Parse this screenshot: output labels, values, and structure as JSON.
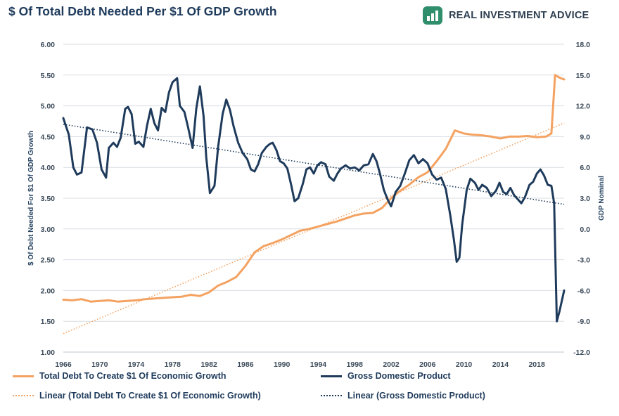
{
  "header": {
    "title": "$ Of Total Debt Needed Per $1 Of GDP Growth"
  },
  "brand": {
    "name": "REAL INVESTMENT ADVICE",
    "logo_icon": "chart-bars-icon",
    "logo_color": "#2f8f6c"
  },
  "colors": {
    "debt": "#f4a261",
    "gdp": "#1f3b5c",
    "grid": "#d9dde2"
  },
  "chart_data": {
    "type": "line",
    "left_axis": {
      "label": "$ Of Debt Needed For $1 Of GDP Growth",
      "min": 1.0,
      "max": 6.0,
      "ticks": [
        "1.00",
        "1.50",
        "2.00",
        "2.50",
        "3.00",
        "3.50",
        "4.00",
        "4.50",
        "5.00",
        "5.50",
        "6.00"
      ]
    },
    "right_axis": {
      "label": "GDP Nominal",
      "min": -12.0,
      "max": 18.0,
      "ticks": [
        "-12.0",
        "-9.0",
        "-6.0",
        "-3.0",
        "0.0",
        "3.0",
        "6.0",
        "9.0",
        "12.0",
        "15.0",
        "18.0"
      ]
    },
    "x_axis": {
      "min": 1966,
      "max": 2021,
      "ticks": [
        "1966",
        "1970",
        "1974",
        "1978",
        "1982",
        "1986",
        "1990",
        "1994",
        "1998",
        "2002",
        "2006",
        "2010",
        "2014",
        "2018"
      ]
    },
    "series": [
      {
        "name": "Total Debt To Create $1 Of Economic Growth",
        "axis": "left",
        "points": [
          [
            1966,
            1.85
          ],
          [
            1967,
            1.84
          ],
          [
            1968,
            1.86
          ],
          [
            1969,
            1.82
          ],
          [
            1970,
            1.83
          ],
          [
            1971,
            1.84
          ],
          [
            1972,
            1.82
          ],
          [
            1973,
            1.83
          ],
          [
            1974,
            1.84
          ],
          [
            1975,
            1.86
          ],
          [
            1976,
            1.87
          ],
          [
            1977,
            1.88
          ],
          [
            1978,
            1.89
          ],
          [
            1979,
            1.9
          ],
          [
            1980,
            1.93
          ],
          [
            1981,
            1.91
          ],
          [
            1982,
            1.97
          ],
          [
            1983,
            2.08
          ],
          [
            1984,
            2.14
          ],
          [
            1985,
            2.22
          ],
          [
            1986,
            2.4
          ],
          [
            1987,
            2.62
          ],
          [
            1988,
            2.72
          ],
          [
            1989,
            2.77
          ],
          [
            1990,
            2.83
          ],
          [
            1991,
            2.9
          ],
          [
            1992,
            2.97
          ],
          [
            1993,
            3.0
          ],
          [
            1994,
            3.04
          ],
          [
            1995,
            3.08
          ],
          [
            1996,
            3.12
          ],
          [
            1997,
            3.17
          ],
          [
            1998,
            3.22
          ],
          [
            1999,
            3.25
          ],
          [
            2000,
            3.26
          ],
          [
            2001,
            3.34
          ],
          [
            2002,
            3.5
          ],
          [
            2003,
            3.62
          ],
          [
            2004,
            3.72
          ],
          [
            2005,
            3.84
          ],
          [
            2006,
            3.92
          ],
          [
            2007,
            4.1
          ],
          [
            2008,
            4.3
          ],
          [
            2009,
            4.6
          ],
          [
            2010,
            4.55
          ],
          [
            2011,
            4.53
          ],
          [
            2012,
            4.52
          ],
          [
            2013,
            4.5
          ],
          [
            2014,
            4.47
          ],
          [
            2015,
            4.5
          ],
          [
            2016,
            4.5
          ],
          [
            2017,
            4.51
          ],
          [
            2018,
            4.49
          ],
          [
            2019,
            4.5
          ],
          [
            2019.6,
            4.55
          ],
          [
            2020.0,
            5.5
          ],
          [
            2020.6,
            5.45
          ],
          [
            2021,
            5.43
          ]
        ]
      },
      {
        "name": "Gross Domestic Product",
        "axis": "right",
        "points": [
          [
            1966,
            10.8
          ],
          [
            1966.6,
            9.2
          ],
          [
            1967.1,
            6.0
          ],
          [
            1967.5,
            5.3
          ],
          [
            1968,
            5.5
          ],
          [
            1968.6,
            9.9
          ],
          [
            1969.2,
            9.7
          ],
          [
            1969.7,
            8.4
          ],
          [
            1970.2,
            5.8
          ],
          [
            1970.7,
            5.0
          ],
          [
            1971,
            7.9
          ],
          [
            1971.5,
            8.4
          ],
          [
            1971.9,
            8.0
          ],
          [
            1972.3,
            8.9
          ],
          [
            1972.8,
            11.7
          ],
          [
            1973.1,
            11.9
          ],
          [
            1973.5,
            11.2
          ],
          [
            1973.9,
            8.3
          ],
          [
            1974.3,
            8.5
          ],
          [
            1974.8,
            8.0
          ],
          [
            1975.2,
            10.1
          ],
          [
            1975.6,
            11.7
          ],
          [
            1976,
            10.3
          ],
          [
            1976.4,
            9.6
          ],
          [
            1976.8,
            11.8
          ],
          [
            1977.2,
            11.4
          ],
          [
            1977.6,
            13.3
          ],
          [
            1978,
            14.3
          ],
          [
            1978.5,
            14.7
          ],
          [
            1978.8,
            12.0
          ],
          [
            1979.3,
            11.4
          ],
          [
            1979.7,
            9.9
          ],
          [
            1980.2,
            7.9
          ],
          [
            1980.6,
            11.7
          ],
          [
            1981,
            13.9
          ],
          [
            1981.4,
            11.0
          ],
          [
            1981.7,
            7.0
          ],
          [
            1982.1,
            3.5
          ],
          [
            1982.6,
            4.2
          ],
          [
            1983,
            8.0
          ],
          [
            1983.5,
            11.2
          ],
          [
            1983.9,
            12.6
          ],
          [
            1984.3,
            11.6
          ],
          [
            1984.7,
            10.0
          ],
          [
            1985.2,
            8.4
          ],
          [
            1985.7,
            7.4
          ],
          [
            1986.2,
            6.8
          ],
          [
            1986.6,
            5.8
          ],
          [
            1987,
            5.6
          ],
          [
            1987.4,
            6.3
          ],
          [
            1987.8,
            7.4
          ],
          [
            1988.3,
            8.0
          ],
          [
            1988.7,
            8.3
          ],
          [
            1989,
            8.4
          ],
          [
            1989.4,
            7.7
          ],
          [
            1989.8,
            6.6
          ],
          [
            1990.2,
            6.4
          ],
          [
            1990.6,
            5.9
          ],
          [
            1991,
            4.4
          ],
          [
            1991.4,
            2.7
          ],
          [
            1991.8,
            3.0
          ],
          [
            1992.3,
            4.4
          ],
          [
            1992.7,
            5.8
          ],
          [
            1993.1,
            6.0
          ],
          [
            1993.5,
            5.4
          ],
          [
            1993.9,
            6.2
          ],
          [
            1994.3,
            6.5
          ],
          [
            1994.8,
            6.3
          ],
          [
            1995.2,
            5.1
          ],
          [
            1995.7,
            4.7
          ],
          [
            1996.1,
            5.4
          ],
          [
            1996.5,
            5.9
          ],
          [
            1997,
            6.2
          ],
          [
            1997.5,
            5.9
          ],
          [
            1998,
            6.0
          ],
          [
            1998.5,
            5.7
          ],
          [
            1999,
            6.2
          ],
          [
            1999.5,
            6.3
          ],
          [
            2000,
            7.3
          ],
          [
            2000.4,
            6.6
          ],
          [
            2000.8,
            5.3
          ],
          [
            2001.2,
            3.8
          ],
          [
            2001.6,
            2.9
          ],
          [
            2002,
            2.2
          ],
          [
            2002.5,
            3.6
          ],
          [
            2003,
            4.2
          ],
          [
            2003.5,
            5.4
          ],
          [
            2004,
            6.7
          ],
          [
            2004.5,
            7.2
          ],
          [
            2005,
            6.4
          ],
          [
            2005.5,
            6.8
          ],
          [
            2006,
            6.4
          ],
          [
            2006.5,
            5.3
          ],
          [
            2007,
            4.8
          ],
          [
            2007.5,
            5.0
          ],
          [
            2008,
            3.9
          ],
          [
            2008.5,
            1.3
          ],
          [
            2008.9,
            -1.1
          ],
          [
            2009.2,
            -3.2
          ],
          [
            2009.5,
            -2.8
          ],
          [
            2009.8,
            0.4
          ],
          [
            2010.3,
            3.8
          ],
          [
            2010.7,
            4.9
          ],
          [
            2011.2,
            4.5
          ],
          [
            2011.6,
            3.8
          ],
          [
            2012,
            4.3
          ],
          [
            2012.5,
            4.0
          ],
          [
            2013,
            3.2
          ],
          [
            2013.5,
            3.7
          ],
          [
            2013.9,
            4.5
          ],
          [
            2014.3,
            3.6
          ],
          [
            2014.7,
            3.4
          ],
          [
            2015.1,
            4.0
          ],
          [
            2015.5,
            3.3
          ],
          [
            2015.9,
            2.9
          ],
          [
            2016.3,
            2.5
          ],
          [
            2016.7,
            3.1
          ],
          [
            2017.2,
            4.3
          ],
          [
            2017.6,
            4.6
          ],
          [
            2018,
            5.4
          ],
          [
            2018.4,
            5.8
          ],
          [
            2018.8,
            5.2
          ],
          [
            2019.2,
            4.3
          ],
          [
            2019.6,
            4.2
          ],
          [
            2019.9,
            2.5
          ],
          [
            2020.2,
            -9.0
          ],
          [
            2020.5,
            -8.0
          ],
          [
            2021,
            -6.0
          ]
        ]
      }
    ],
    "trendlines": [
      {
        "name": "Linear (Total Debt To Create $1 Of Economic Growth)",
        "axis": "left",
        "start": [
          1966,
          1.3
        ],
        "end": [
          2021,
          4.72
        ]
      },
      {
        "name": "Linear (Gross Domestic Product)",
        "axis": "right",
        "start": [
          1966,
          10.2
        ],
        "end": [
          2021,
          2.4
        ]
      }
    ],
    "grid": true,
    "legend_position": "bottom"
  }
}
